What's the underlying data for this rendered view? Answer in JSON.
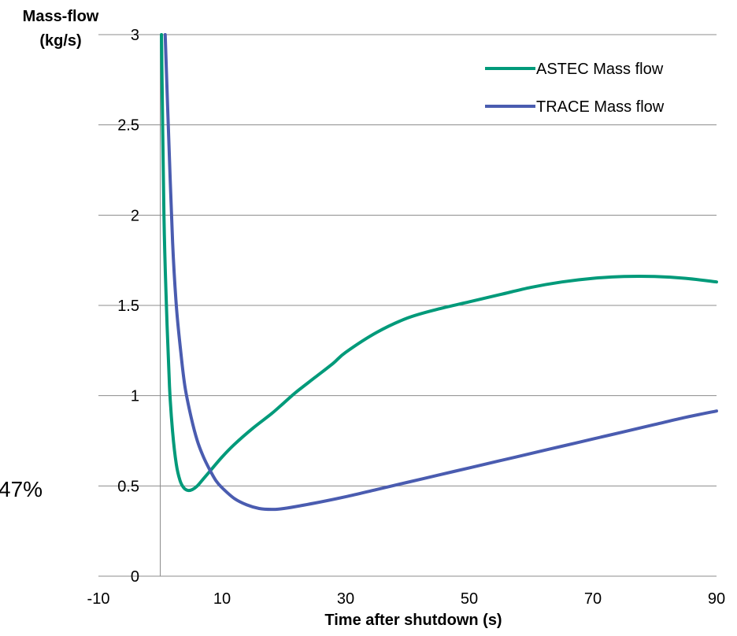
{
  "chart_data": {
    "type": "line",
    "title": "",
    "xlabel": "Time after shutdown (s)",
    "ylabel_line1": "Mass-flow",
    "ylabel_line2": "(kg/s)",
    "xlim": [
      -10,
      90
    ],
    "ylim": [
      0,
      3
    ],
    "xticks": [
      -10,
      10,
      30,
      50,
      70,
      90
    ],
    "yticks": [
      0,
      0.5,
      1,
      1.5,
      2,
      2.5,
      3
    ],
    "grid": "horizontal",
    "legend_position": "top-right",
    "stray_text": "47%",
    "series": [
      {
        "name": "ASTEC Mass flow",
        "color": "#009a7a",
        "points": [
          [
            0.2,
            3.0
          ],
          [
            0.6,
            2.0
          ],
          [
            1.0,
            1.5
          ],
          [
            1.5,
            1.05
          ],
          [
            2.0,
            0.8
          ],
          [
            2.6,
            0.62
          ],
          [
            3.2,
            0.53
          ],
          [
            3.8,
            0.49
          ],
          [
            4.5,
            0.475
          ],
          [
            5.2,
            0.48
          ],
          [
            6.0,
            0.5
          ],
          [
            7.0,
            0.54
          ],
          [
            8.0,
            0.58
          ],
          [
            10,
            0.66
          ],
          [
            12,
            0.73
          ],
          [
            15,
            0.82
          ],
          [
            18,
            0.9
          ],
          [
            20,
            0.96
          ],
          [
            22,
            1.02
          ],
          [
            25,
            1.1
          ],
          [
            28,
            1.18
          ],
          [
            30,
            1.24
          ],
          [
            35,
            1.35
          ],
          [
            40,
            1.43
          ],
          [
            45,
            1.48
          ],
          [
            50,
            1.52
          ],
          [
            55,
            1.56
          ],
          [
            60,
            1.6
          ],
          [
            65,
            1.63
          ],
          [
            70,
            1.65
          ],
          [
            75,
            1.66
          ],
          [
            80,
            1.66
          ],
          [
            85,
            1.65
          ],
          [
            90,
            1.63
          ]
        ]
      },
      {
        "name": "TRACE Mass flow",
        "color": "#4a5cb0",
        "points": [
          [
            0.8,
            3.0
          ],
          [
            1.3,
            2.5
          ],
          [
            2.0,
            1.85
          ],
          [
            2.6,
            1.5
          ],
          [
            3.3,
            1.25
          ],
          [
            4.0,
            1.05
          ],
          [
            5.0,
            0.88
          ],
          [
            6.0,
            0.75
          ],
          [
            7.0,
            0.66
          ],
          [
            8.0,
            0.59
          ],
          [
            9.0,
            0.53
          ],
          [
            10,
            0.49
          ],
          [
            12,
            0.43
          ],
          [
            14,
            0.395
          ],
          [
            16,
            0.375
          ],
          [
            18,
            0.37
          ],
          [
            20,
            0.375
          ],
          [
            25,
            0.405
          ],
          [
            30,
            0.44
          ],
          [
            35,
            0.48
          ],
          [
            40,
            0.52
          ],
          [
            45,
            0.56
          ],
          [
            50,
            0.6
          ],
          [
            55,
            0.64
          ],
          [
            60,
            0.68
          ],
          [
            65,
            0.72
          ],
          [
            70,
            0.76
          ],
          [
            75,
            0.8
          ],
          [
            80,
            0.84
          ],
          [
            85,
            0.88
          ],
          [
            90,
            0.915
          ]
        ]
      }
    ]
  }
}
